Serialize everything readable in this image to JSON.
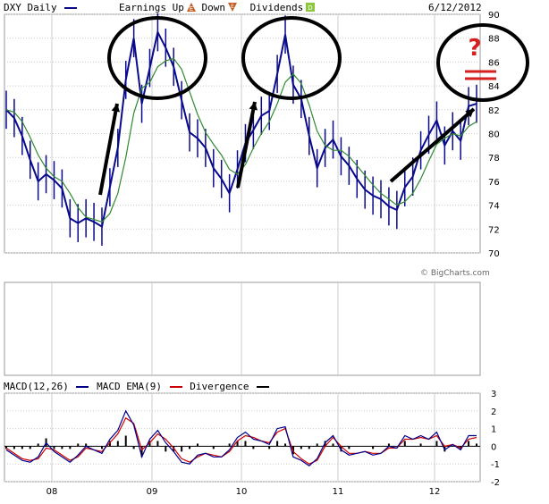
{
  "header": {
    "symbol": "DXY",
    "interval": "Daily",
    "earnings_label": "Earnings",
    "up_label": "Up",
    "down_label": "Down",
    "dividends_label": "Dividends",
    "date": "6/12/2012",
    "watermark": "© BigCharts.com"
  },
  "macd_legend": {
    "macd": "MACD(12,26)",
    "ema": "MACD EMA(9)",
    "divergence": "Divergence"
  },
  "colors": {
    "price": "#0a0a8c",
    "ma": "#2f8a2f",
    "macd": "#00008b",
    "ema": "#cc0000",
    "divergence": "#000000",
    "annotation": "#000000",
    "question": "#d62020"
  },
  "annotations": {
    "question_mark": "?"
  },
  "chart_data": [
    {
      "type": "line",
      "title": "DXY Daily",
      "x": [
        "2007-07",
        "2007-08",
        "2007-09",
        "2007-10",
        "2007-11",
        "2007-12",
        "2008-01",
        "2008-02",
        "2008-03",
        "2008-04",
        "2008-05",
        "2008-06",
        "2008-07",
        "2008-08",
        "2008-09",
        "2008-10",
        "2008-11",
        "2008-12",
        "2009-01",
        "2009-02",
        "2009-03",
        "2009-04",
        "2009-05",
        "2009-06",
        "2009-07",
        "2009-08",
        "2009-09",
        "2009-10",
        "2009-11",
        "2009-12",
        "2010-01",
        "2010-02",
        "2010-03",
        "2010-04",
        "2010-05",
        "2010-06",
        "2010-07",
        "2010-08",
        "2010-09",
        "2010-10",
        "2010-11",
        "2010-12",
        "2011-01",
        "2011-02",
        "2011-03",
        "2011-04",
        "2011-05",
        "2011-06",
        "2011-07",
        "2011-08",
        "2011-09",
        "2011-10",
        "2011-11",
        "2011-12",
        "2012-01",
        "2012-02",
        "2012-03",
        "2012-04",
        "2012-05",
        "2012-06"
      ],
      "series": [
        {
          "name": "DXY",
          "values": [
            82.0,
            81.3,
            79.8,
            77.8,
            76.0,
            76.6,
            76.1,
            75.4,
            72.9,
            72.5,
            72.9,
            72.6,
            72.2,
            75.5,
            78.8,
            84.5,
            88.0,
            82.5,
            85.5,
            88.5,
            87.2,
            85.6,
            82.8,
            80.1,
            79.6,
            78.8,
            77.1,
            76.2,
            75.0,
            77.0,
            79.2,
            80.3,
            81.5,
            81.9,
            85.0,
            88.3,
            84.1,
            82.9,
            79.8,
            77.1,
            78.8,
            79.5,
            78.1,
            77.3,
            76.2,
            75.3,
            74.8,
            74.5,
            73.9,
            73.6,
            75.5,
            76.4,
            78.6,
            79.9,
            81.1,
            79.0,
            80.2,
            79.4,
            82.3,
            82.5
          ]
        },
        {
          "name": "Moving average",
          "values": [
            82.0,
            81.8,
            81.0,
            79.7,
            78.2,
            77.1,
            76.4,
            76.0,
            75.0,
            73.8,
            73.0,
            72.8,
            72.6,
            73.3,
            75.0,
            78.0,
            81.7,
            83.8,
            84.3,
            85.6,
            86.1,
            86.3,
            85.4,
            83.5,
            81.6,
            80.1,
            79.1,
            78.2,
            77.0,
            76.6,
            77.4,
            78.8,
            80.0,
            81.0,
            82.5,
            84.3,
            85.0,
            84.2,
            82.4,
            80.2,
            79.0,
            78.6,
            78.6,
            78.1,
            77.3,
            76.5,
            75.7,
            75.0,
            74.5,
            74.0,
            74.3,
            75.0,
            76.2,
            77.7,
            79.1,
            79.6,
            80.0,
            79.8,
            80.6,
            81.0
          ]
        }
      ],
      "ylim": [
        70,
        90
      ],
      "yticks": [
        70,
        72,
        74,
        76,
        78,
        80,
        82,
        84,
        86,
        88,
        90
      ],
      "xticks": [
        "08",
        "09",
        "10",
        "11",
        "12"
      ],
      "grid": true
    },
    {
      "type": "line",
      "title": "MACD(12,26)",
      "x": [
        "2007-07",
        "2007-08",
        "2007-09",
        "2007-10",
        "2007-11",
        "2007-12",
        "2008-01",
        "2008-02",
        "2008-03",
        "2008-04",
        "2008-05",
        "2008-06",
        "2008-07",
        "2008-08",
        "2008-09",
        "2008-10",
        "2008-11",
        "2008-12",
        "2009-01",
        "2009-02",
        "2009-03",
        "2009-04",
        "2009-05",
        "2009-06",
        "2009-07",
        "2009-08",
        "2009-09",
        "2009-10",
        "2009-11",
        "2009-12",
        "2010-01",
        "2010-02",
        "2010-03",
        "2010-04",
        "2010-05",
        "2010-06",
        "2010-07",
        "2010-08",
        "2010-09",
        "2010-10",
        "2010-11",
        "2010-12",
        "2011-01",
        "2011-02",
        "2011-03",
        "2011-04",
        "2011-05",
        "2011-06",
        "2011-07",
        "2011-08",
        "2011-09",
        "2011-10",
        "2011-11",
        "2011-12",
        "2012-01",
        "2012-02",
        "2012-03",
        "2012-04",
        "2012-05",
        "2012-06"
      ],
      "series": [
        {
          "name": "MACD",
          "values": [
            -0.2,
            -0.5,
            -0.8,
            -0.9,
            -0.6,
            0.2,
            -0.3,
            -0.6,
            -0.9,
            -0.5,
            0.0,
            -0.2,
            -0.4,
            0.4,
            0.9,
            2.0,
            1.2,
            -0.6,
            0.4,
            0.9,
            0.2,
            -0.3,
            -0.9,
            -1.0,
            -0.5,
            -0.4,
            -0.6,
            -0.6,
            -0.2,
            0.5,
            0.8,
            0.4,
            0.3,
            0.1,
            1.0,
            1.1,
            -0.6,
            -0.8,
            -1.1,
            -0.7,
            0.2,
            0.6,
            -0.2,
            -0.5,
            -0.4,
            -0.3,
            -0.5,
            -0.4,
            0.0,
            -0.1,
            0.6,
            0.4,
            0.6,
            0.4,
            0.8,
            -0.2,
            0.1,
            -0.2,
            0.6,
            0.6
          ]
        },
        {
          "name": "MACD EMA(9)",
          "values": [
            -0.1,
            -0.4,
            -0.7,
            -0.8,
            -0.7,
            -0.1,
            -0.2,
            -0.5,
            -0.8,
            -0.6,
            -0.1,
            -0.2,
            -0.3,
            0.2,
            0.7,
            1.6,
            1.3,
            -0.2,
            0.2,
            0.7,
            0.4,
            -0.1,
            -0.7,
            -0.9,
            -0.6,
            -0.4,
            -0.5,
            -0.6,
            -0.3,
            0.3,
            0.6,
            0.5,
            0.3,
            0.2,
            0.8,
            1.0,
            -0.3,
            -0.7,
            -1.0,
            -0.8,
            0.0,
            0.5,
            0.0,
            -0.4,
            -0.4,
            -0.3,
            -0.4,
            -0.4,
            -0.1,
            -0.1,
            0.4,
            0.4,
            0.5,
            0.4,
            0.6,
            0.0,
            0.1,
            -0.1,
            0.4,
            0.5
          ]
        }
      ],
      "ylim": [
        -2,
        3
      ],
      "yticks": [
        -2,
        -1,
        0,
        1,
        2,
        3
      ],
      "xticks": [
        "08",
        "09",
        "10",
        "11",
        "12"
      ],
      "grid": true
    }
  ]
}
